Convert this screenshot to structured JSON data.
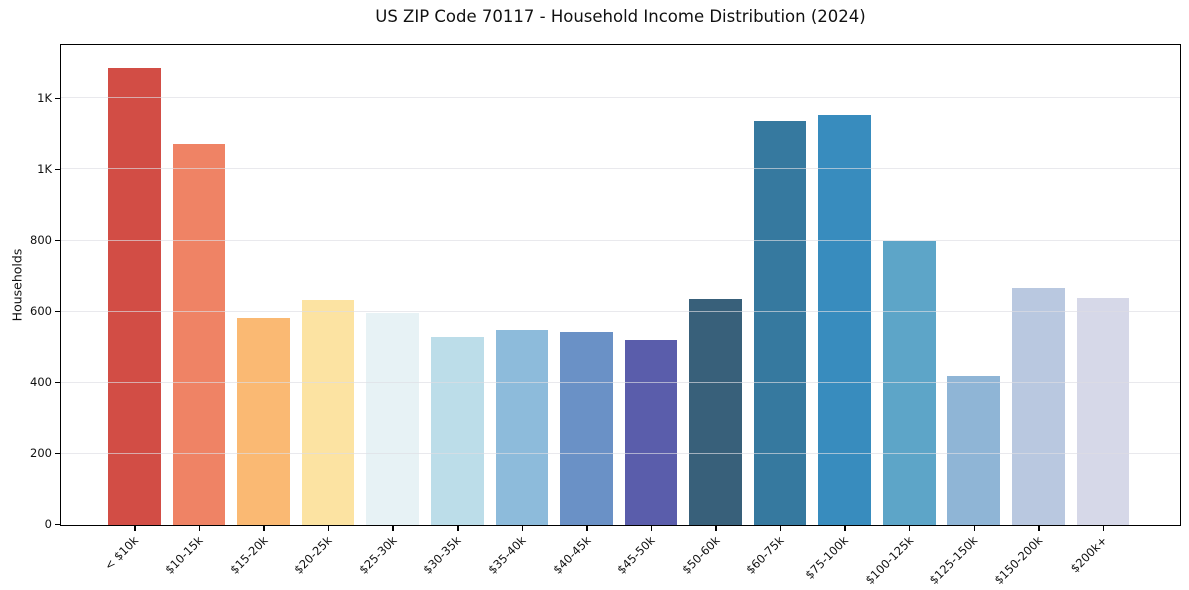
{
  "title": "US ZIP Code 70117 - Household Income Distribution (2024)",
  "background_color": "#ffffff",
  "chart_data": {
    "type": "bar",
    "title": "US ZIP Code 70117 - Household Income Distribution (2024)",
    "xlabel": "",
    "ylabel": "Households",
    "ylim": [
      0,
      1350
    ],
    "grid": true,
    "legend": false,
    "categories": [
      "< $10k",
      "$10-15k",
      "$15-20k",
      "$20-25k",
      "$25-30k",
      "$30-35k",
      "$35-40k",
      "$40-45k",
      "$45-50k",
      "$50-60k",
      "$60-75k",
      "$75-100k",
      "$100-125k",
      "$125-150k",
      "$150-200k",
      "$200k+"
    ],
    "values": [
      1285,
      1072,
      582,
      632,
      597,
      530,
      549,
      543,
      521,
      635,
      1137,
      1154,
      800,
      420,
      668,
      638
    ],
    "bar_colors": [
      "#d24d45",
      "#ef8365",
      "#fab973",
      "#fce3a2",
      "#e7f2f5",
      "#bcdde9",
      "#8dbbdb",
      "#6a91c6",
      "#5a5dab",
      "#38607a",
      "#36799f",
      "#388cbe",
      "#5da5c8",
      "#8fb5d6",
      "#b9c8e0",
      "#d6d8e8"
    ],
    "y_tick_values": [
      0,
      200,
      400,
      600,
      800,
      1000,
      1200
    ],
    "y_tick_labels": [
      "0",
      "200",
      "400",
      "600",
      "800",
      "1K",
      "1K"
    ],
    "axis_color": "#000000",
    "gridline_color": "#e9e9ec"
  }
}
